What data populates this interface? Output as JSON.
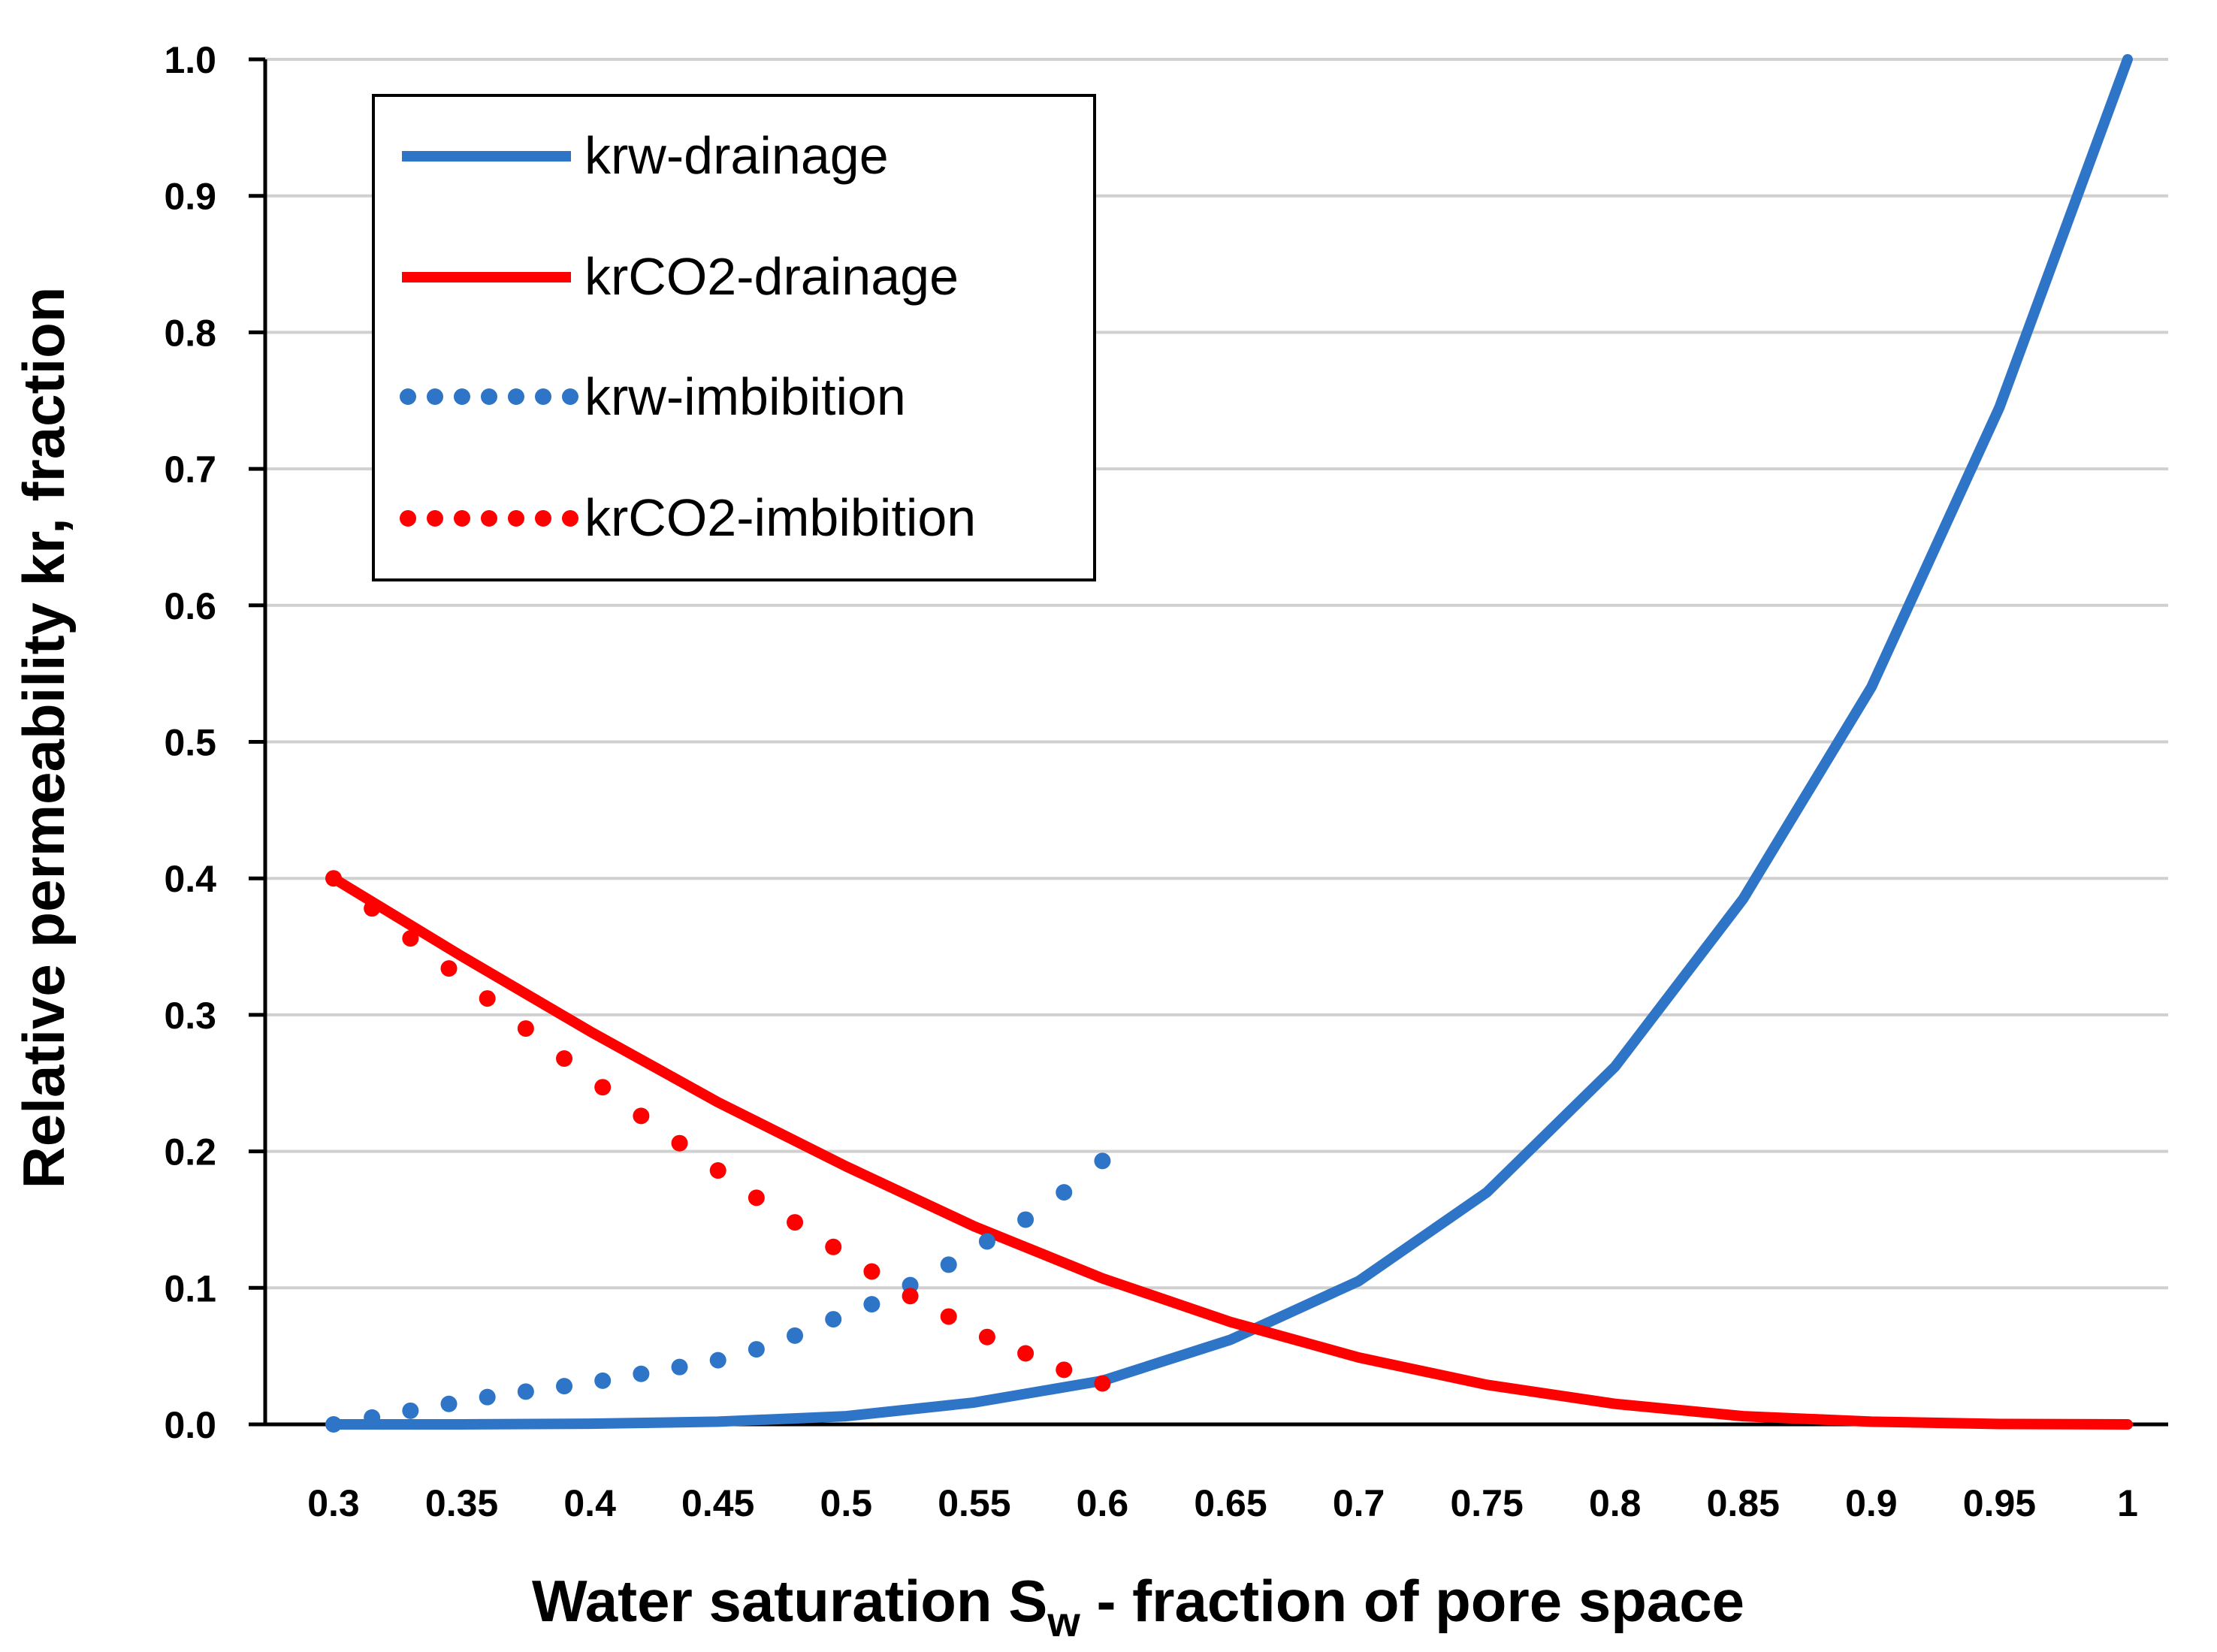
{
  "chart_data": {
    "type": "line",
    "title": "",
    "xlabel": {
      "main": "Water saturation S",
      "subscript": "w",
      "rest": " - fraction of pore space"
    },
    "ylabel": "Relative permeability kr, fraction",
    "xlim": [
      0.3,
      1.0
    ],
    "ylim": [
      0.0,
      1.0
    ],
    "grid": "horizontal",
    "legend_position": "top-left",
    "x_ticks": [
      "0.3",
      "0.35",
      "0.4",
      "0.45",
      "0.5",
      "0.55",
      "0.6",
      "0.65",
      "0.7",
      "0.75",
      "0.8",
      "0.85",
      "0.9",
      "0.95",
      "1"
    ],
    "y_ticks": [
      "0.0",
      "0.1",
      "0.2",
      "0.3",
      "0.4",
      "0.5",
      "0.6",
      "0.7",
      "0.8",
      "0.9",
      "1.0"
    ],
    "series": [
      {
        "name": "krw-drainage",
        "style": "solid",
        "color": "#2E75C8",
        "x": [
          0.3,
          0.35,
          0.4,
          0.45,
          0.5,
          0.55,
          0.6,
          0.65,
          0.7,
          0.75,
          0.8,
          0.85,
          0.9,
          0.95,
          1.0
        ],
        "y": [
          0.0,
          0.0,
          0.0005,
          0.002,
          0.006,
          0.016,
          0.032,
          0.062,
          0.105,
          0.17,
          0.262,
          0.385,
          0.54,
          0.745,
          1.0
        ]
      },
      {
        "name": "krCO2-drainage",
        "style": "solid",
        "color": "#FF0000",
        "x": [
          0.3,
          0.35,
          0.4,
          0.45,
          0.5,
          0.55,
          0.6,
          0.65,
          0.7,
          0.75,
          0.8,
          0.85,
          0.9,
          0.95,
          1.0
        ],
        "y": [
          0.4,
          0.343,
          0.288,
          0.236,
          0.189,
          0.145,
          0.107,
          0.075,
          0.049,
          0.029,
          0.015,
          0.006,
          0.002,
          0.0003,
          0.0
        ]
      },
      {
        "name": "krw-imbibition",
        "style": "dotted",
        "color": "#2E75C8",
        "x": [
          0.3,
          0.315,
          0.33,
          0.345,
          0.36,
          0.375,
          0.39,
          0.405,
          0.42,
          0.435,
          0.45,
          0.465,
          0.48,
          0.495,
          0.51,
          0.525,
          0.54,
          0.555,
          0.57,
          0.585,
          0.6
        ],
        "y": [
          0.0,
          0.005,
          0.01,
          0.015,
          0.02,
          0.024,
          0.028,
          0.032,
          0.037,
          0.042,
          0.047,
          0.055,
          0.065,
          0.077,
          0.088,
          0.102,
          0.117,
          0.134,
          0.15,
          0.17,
          0.193
        ]
      },
      {
        "name": "krCO2-imbibition",
        "style": "dotted",
        "color": "#FF0000",
        "x": [
          0.3,
          0.315,
          0.33,
          0.345,
          0.36,
          0.375,
          0.39,
          0.405,
          0.42,
          0.435,
          0.45,
          0.465,
          0.48,
          0.495,
          0.51,
          0.525,
          0.54,
          0.555,
          0.57,
          0.585,
          0.6
        ],
        "y": [
          0.4,
          0.378,
          0.356,
          0.334,
          0.312,
          0.29,
          0.268,
          0.247,
          0.226,
          0.206,
          0.186,
          0.166,
          0.148,
          0.13,
          0.112,
          0.094,
          0.079,
          0.064,
          0.052,
          0.04,
          0.03
        ]
      }
    ]
  }
}
